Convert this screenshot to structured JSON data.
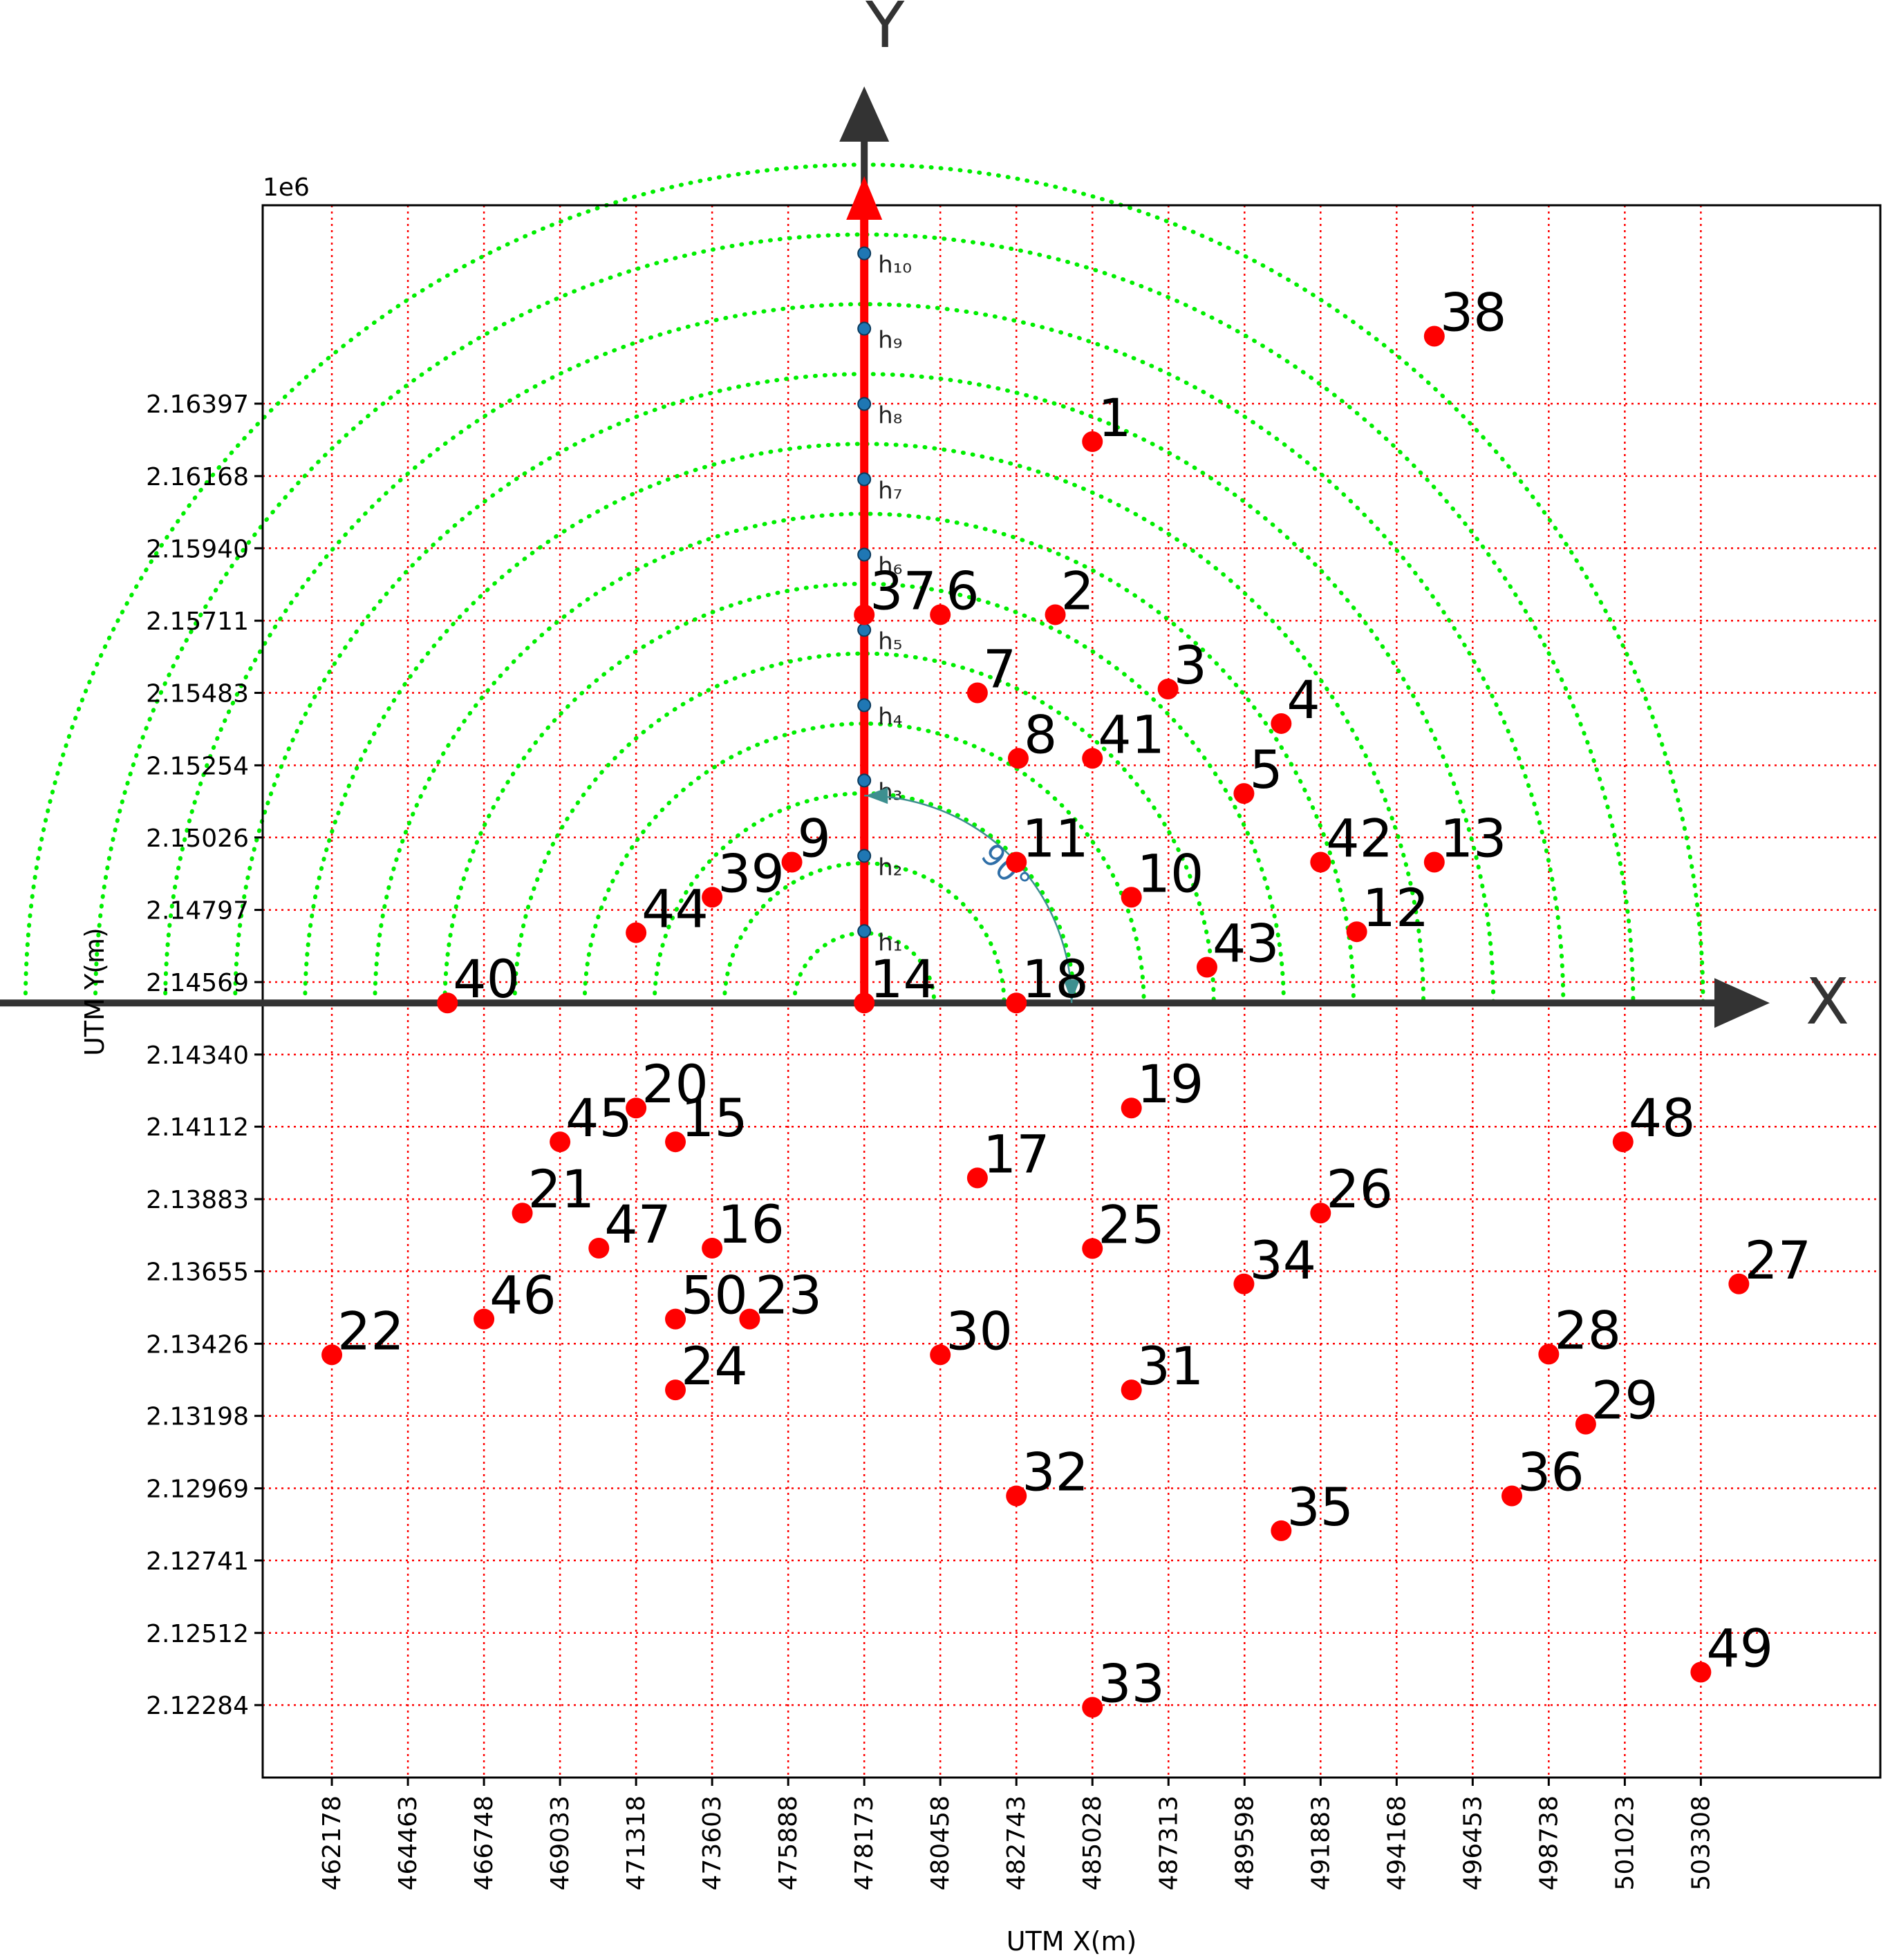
{
  "chart_data": {
    "type": "scatter",
    "title": "",
    "xlabel": "UTM X(m)",
    "ylabel": "UTM Y(m)",
    "y_offset_label": "1e6",
    "xlim": [
      460100,
      508700
    ],
    "ylim": [
      2.12055,
      2.17024
    ],
    "x_ticks": [
      462178,
      464463,
      466748,
      469033,
      471318,
      473603,
      475888,
      478173,
      480458,
      482743,
      485028,
      487313,
      489598,
      491883,
      494168,
      496453,
      498738,
      501023,
      503308
    ],
    "y_ticks": [
      2.16397,
      2.16168,
      2.1594,
      2.15711,
      2.15483,
      2.15254,
      2.15026,
      2.14797,
      2.14569,
      2.1434,
      2.14112,
      2.13883,
      2.13655,
      2.13426,
      2.13198,
      2.12969,
      2.12741,
      2.12512,
      2.12284
    ],
    "y_tick_labels": [
      "2.16397",
      "2.16168",
      "2.15940",
      "2.15711",
      "2.15483",
      "2.15254",
      "2.15026",
      "2.14797",
      "2.14569",
      "2.14340",
      "2.14112",
      "2.13883",
      "2.13655",
      "2.13426",
      "2.13198",
      "2.12969",
      "2.12741",
      "2.12512",
      "2.12284"
    ],
    "grid": true,
    "grid_color": "#ff0000",
    "point_color": "#ff0000",
    "origin": {
      "label": "14",
      "x": 478173,
      "y": 2.14503
    },
    "axes_overlay": {
      "x_label": "X",
      "y_label": "Y",
      "color": "#333333"
    },
    "radial_rings": {
      "color": "#00ee00",
      "radii_m": [
        2100,
        4200,
        6300,
        8400,
        10500,
        12600,
        14700,
        16800,
        18900,
        21000,
        23100,
        25200
      ]
    },
    "direction_vector": {
      "color": "#ff0000",
      "marker_color": "#1f77b4",
      "angle_label": "90°",
      "heights": [
        {
          "label": "h₁",
          "y": 2.1473
        },
        {
          "label": "h₂",
          "y": 2.14968
        },
        {
          "label": "h₃",
          "y": 2.15206
        },
        {
          "label": "h₄",
          "y": 2.15444
        },
        {
          "label": "h₅",
          "y": 2.15682
        },
        {
          "label": "h₆",
          "y": 2.1592
        },
        {
          "label": "h₇",
          "y": 2.16158
        },
        {
          "label": "h₈",
          "y": 2.16396
        },
        {
          "label": "h₉",
          "y": 2.16634
        },
        {
          "label": "h₁₀",
          "y": 2.16872
        }
      ]
    },
    "points": [
      {
        "label": "1",
        "x": 485028,
        "y": 2.16277
      },
      {
        "label": "2",
        "x": 483913,
        "y": 2.1573
      },
      {
        "label": "3",
        "x": 487300,
        "y": 2.15495
      },
      {
        "label": "4",
        "x": 490700,
        "y": 2.15386
      },
      {
        "label": "5",
        "x": 489580,
        "y": 2.15165
      },
      {
        "label": "6",
        "x": 480458,
        "y": 2.1573
      },
      {
        "label": "7",
        "x": 481573,
        "y": 2.15483
      },
      {
        "label": "8",
        "x": 482800,
        "y": 2.15276
      },
      {
        "label": "9",
        "x": 476000,
        "y": 2.14948
      },
      {
        "label": "10",
        "x": 486200,
        "y": 2.14837
      },
      {
        "label": "11",
        "x": 482743,
        "y": 2.14948
      },
      {
        "label": "12",
        "x": 492970,
        "y": 2.14728
      },
      {
        "label": "13",
        "x": 495300,
        "y": 2.14948
      },
      {
        "label": "14",
        "x": 478173,
        "y": 2.14503
      },
      {
        "label": "15",
        "x": 472500,
        "y": 2.14064
      },
      {
        "label": "16",
        "x": 473603,
        "y": 2.13728
      },
      {
        "label": "17",
        "x": 481573,
        "y": 2.1395
      },
      {
        "label": "18",
        "x": 482743,
        "y": 2.14503
      },
      {
        "label": "19",
        "x": 486200,
        "y": 2.14171
      },
      {
        "label": "20",
        "x": 471318,
        "y": 2.14171
      },
      {
        "label": "21",
        "x": 467900,
        "y": 2.13839
      },
      {
        "label": "22",
        "x": 462178,
        "y": 2.13391
      },
      {
        "label": "23",
        "x": 474730,
        "y": 2.13504
      },
      {
        "label": "24",
        "x": 472500,
        "y": 2.1328
      },
      {
        "label": "25",
        "x": 485028,
        "y": 2.13727
      },
      {
        "label": "26",
        "x": 491883,
        "y": 2.13839
      },
      {
        "label": "27",
        "x": 504450,
        "y": 2.13615
      },
      {
        "label": "28",
        "x": 498738,
        "y": 2.13393
      },
      {
        "label": "29",
        "x": 499850,
        "y": 2.13172
      },
      {
        "label": "30",
        "x": 480458,
        "y": 2.13391
      },
      {
        "label": "31",
        "x": 486200,
        "y": 2.1328
      },
      {
        "label": "32",
        "x": 482743,
        "y": 2.12945
      },
      {
        "label": "33",
        "x": 485028,
        "y": 2.12277
      },
      {
        "label": "34",
        "x": 489580,
        "y": 2.13615
      },
      {
        "label": "35",
        "x": 490700,
        "y": 2.12835
      },
      {
        "label": "36",
        "x": 497630,
        "y": 2.12945
      },
      {
        "label": "37",
        "x": 478173,
        "y": 2.1573
      },
      {
        "label": "38",
        "x": 495300,
        "y": 2.1661
      },
      {
        "label": "39",
        "x": 473603,
        "y": 2.14837
      },
      {
        "label": "40",
        "x": 465650,
        "y": 2.14503
      },
      {
        "label": "41",
        "x": 485028,
        "y": 2.15276
      },
      {
        "label": "42",
        "x": 491883,
        "y": 2.14948
      },
      {
        "label": "43",
        "x": 488470,
        "y": 2.14616
      },
      {
        "label": "44",
        "x": 471318,
        "y": 2.14725
      },
      {
        "label": "45",
        "x": 469033,
        "y": 2.14064
      },
      {
        "label": "46",
        "x": 466748,
        "y": 2.13504
      },
      {
        "label": "47",
        "x": 470200,
        "y": 2.13728
      },
      {
        "label": "48",
        "x": 500970,
        "y": 2.14064
      },
      {
        "label": "49",
        "x": 503308,
        "y": 2.12388
      },
      {
        "label": "50",
        "x": 472500,
        "y": 2.13504
      }
    ]
  }
}
